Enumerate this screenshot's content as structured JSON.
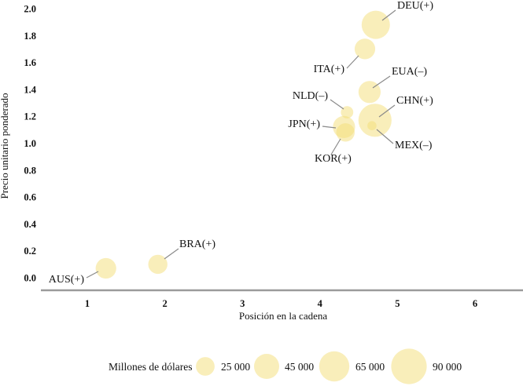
{
  "chart_data": {
    "type": "scatter",
    "subtype": "bubble",
    "title": "",
    "xlabel": "Posición en la cadena",
    "ylabel": "Precio unitario ponderado",
    "xlim": [
      0.4,
      6.6
    ],
    "ylim": [
      -0.1,
      2.0
    ],
    "grid": false,
    "legend_position": "bottom",
    "bubble_color": "#F3DD75",
    "bubble_opacity": 0.5,
    "axis_line_color": "#9b9b9b",
    "leader_line_color": "#8a8a8a",
    "x_ticks": [
      1,
      2,
      3,
      4,
      5,
      6
    ],
    "x_tick_labels": [
      "1",
      "2",
      "3",
      "4",
      "5",
      "6"
    ],
    "y_ticks": [
      0.0,
      0.2,
      0.4,
      0.6,
      0.8,
      1.0,
      1.2,
      1.4,
      1.6,
      1.8,
      2.0
    ],
    "y_tick_labels": [
      "0.0",
      "0.2",
      "0.4",
      "0.6",
      "0.8",
      "1.0",
      "1.2",
      "1.4",
      "1.6",
      "1.8",
      "2.0"
    ],
    "points": [
      {
        "code": "DEU",
        "label": "DEU(+)",
        "x": 4.72,
        "y": 1.88,
        "size": 57000
      },
      {
        "code": "ITA",
        "label": "ITA(+)",
        "x": 4.58,
        "y": 1.7,
        "size": 30000
      },
      {
        "code": "EUA",
        "label": "EUA(–)",
        "x": 4.64,
        "y": 1.38,
        "size": 35000
      },
      {
        "code": "NLD",
        "label": "NLD(–)",
        "x": 4.35,
        "y": 1.23,
        "size": 11000
      },
      {
        "code": "CHN",
        "label": "CHN(+)",
        "x": 4.71,
        "y": 1.17,
        "size": 78000
      },
      {
        "code": "MEX",
        "label": "MEX(–)",
        "x": 4.67,
        "y": 1.13,
        "size": 6000
      },
      {
        "code": "JPN",
        "label": "JPN(+)",
        "x": 4.31,
        "y": 1.12,
        "size": 35000
      },
      {
        "code": "KOR",
        "label": "KOR(+)",
        "x": 4.33,
        "y": 1.08,
        "size": 24000
      },
      {
        "code": "BRA",
        "label": "BRA(+)",
        "x": 1.91,
        "y": 0.1,
        "size": 26000
      },
      {
        "code": "AUS",
        "label": "AUS(+)",
        "x": 1.24,
        "y": 0.07,
        "size": 30000
      }
    ],
    "size_legend": {
      "title": "Millones de dólares",
      "entries": [
        {
          "label": "25 000",
          "value": 25000
        },
        {
          "label": "45 000",
          "value": 45000
        },
        {
          "label": "65 000",
          "value": 65000
        },
        {
          "label": "90 000",
          "value": 90000
        }
      ]
    }
  }
}
